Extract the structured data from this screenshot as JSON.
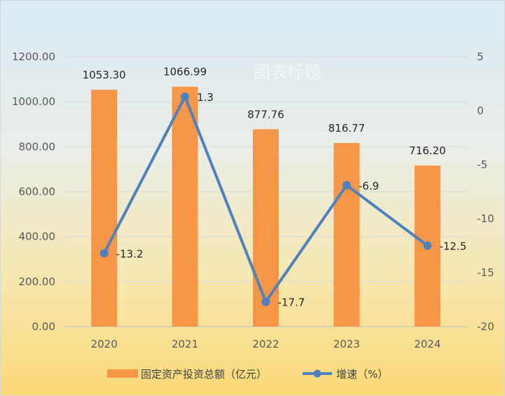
{
  "chart_data": {
    "type": "bar",
    "title": "图表标题",
    "categories": [
      "2020",
      "2021",
      "2022",
      "2023",
      "2024"
    ],
    "series": [
      {
        "name": "固定资产投资总额（亿元）",
        "type": "bar",
        "axis": "left",
        "values": [
          1053.3,
          1066.99,
          877.76,
          816.77,
          716.2
        ],
        "labels": [
          "1053.30",
          "1066.99",
          "877.76",
          "816.77",
          "716.20"
        ],
        "color": "#f79646"
      },
      {
        "name": "增速（%）",
        "type": "line",
        "axis": "right",
        "values": [
          -13.2,
          1.3,
          -17.7,
          -6.9,
          -12.5
        ],
        "labels": [
          "-13.2",
          "1.3",
          "-17.7",
          "-6.9",
          "-12.5"
        ],
        "color": "#4f81bd"
      }
    ],
    "y_left": {
      "ylim": [
        0,
        1200
      ],
      "ticks": [
        "0.00",
        "200.00",
        "400.00",
        "600.00",
        "800.00",
        "1000.00",
        "1200.00"
      ]
    },
    "y_right": {
      "ylim": [
        -20,
        5
      ],
      "ticks": [
        "-20",
        "-15",
        "-10",
        "-5",
        "0",
        "5"
      ]
    },
    "grid": true,
    "legend": "bottom"
  }
}
